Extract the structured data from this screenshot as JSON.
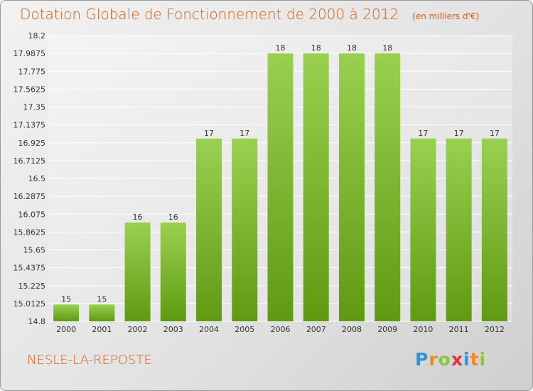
{
  "title": "Dotation Globale de Fonctionnement de 2000 à 2012",
  "unit_note": "(en milliers d'€)",
  "town": "NESLE-LA-REPOSTE",
  "logo": {
    "letters": [
      "P",
      "r",
      "o",
      "x",
      "i",
      "t",
      "i"
    ],
    "colors": [
      "#3a8fd0",
      "#f08a1c",
      "#8cc63e",
      "#e8303a",
      "#3a8fd0",
      "#f08a1c",
      "#8cc63e"
    ]
  },
  "chart_data": {
    "type": "bar",
    "categories": [
      "2000",
      "2001",
      "2002",
      "2003",
      "2004",
      "2005",
      "2006",
      "2007",
      "2008",
      "2009",
      "2010",
      "2011",
      "2012"
    ],
    "values": [
      15,
      15,
      16,
      16,
      17,
      17,
      18,
      18,
      18,
      18,
      17,
      17,
      17
    ],
    "data_labels": [
      "15",
      "15",
      "16",
      "16",
      "17",
      "17",
      "18",
      "18",
      "18",
      "18",
      "17",
      "17",
      "17"
    ],
    "bar_data_values": [
      15.0,
      15.0,
      15.975,
      15.975,
      16.975,
      16.975,
      17.9875,
      17.9875,
      17.9875,
      17.9875,
      16.975,
      16.975,
      16.975
    ],
    "ylim": [
      14.8,
      18.2
    ],
    "yticks": [
      "14.8",
      "15.0125",
      "15.225",
      "15.4375",
      "15.65",
      "15.8625",
      "16.075",
      "16.2875",
      "16.5",
      "16.7125",
      "16.925",
      "17.1375",
      "17.35",
      "17.5625",
      "17.775",
      "17.9875",
      "18.2"
    ],
    "ytick_values": [
      14.8,
      15.0125,
      15.225,
      15.4375,
      15.65,
      15.8625,
      16.075,
      16.2875,
      16.5,
      16.7125,
      16.925,
      17.1375,
      17.35,
      17.5625,
      17.775,
      17.9875,
      18.2
    ],
    "grid": true,
    "bar_color_top": "#9ad050",
    "bar_color_bottom": "#5f9a12"
  }
}
